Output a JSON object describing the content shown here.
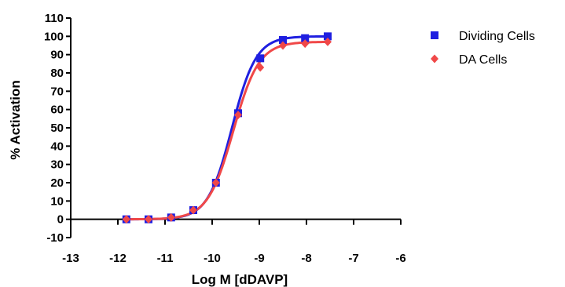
{
  "chart_data": {
    "type": "scatter",
    "title": "",
    "xlabel": "Log M [dDAVP]",
    "ylabel": "% Activation",
    "xlim": [
      -13,
      -6
    ],
    "ylim": [
      -10,
      110
    ],
    "x_ticks": [
      -13,
      -12,
      -11,
      -10,
      -9,
      -8,
      -7,
      -6
    ],
    "y_ticks": [
      -10,
      0,
      10,
      20,
      30,
      40,
      50,
      60,
      70,
      80,
      90,
      100,
      110
    ],
    "x_tick_labels": [
      "-13",
      "-12",
      "-11",
      "-10",
      "-9",
      "-8",
      "-7",
      "-6"
    ],
    "y_tick_labels": [
      "-10",
      "0",
      "10",
      "20",
      "30",
      "40",
      "50",
      "60",
      "70",
      "80",
      "90",
      "100",
      "110"
    ],
    "grid": false,
    "legend_position": "top-right",
    "series": [
      {
        "name": "Dividing Cells",
        "color": "#1f1fe0",
        "marker": "square",
        "x": [
          -11.82,
          -11.35,
          -10.87,
          -10.4,
          -9.92,
          -9.45,
          -8.98,
          -8.5,
          -8.03,
          -7.55
        ],
        "y": [
          0,
          0,
          1,
          5,
          20,
          58,
          88,
          98,
          99,
          100
        ],
        "fit": {
          "bottom": 0,
          "top": 100,
          "logEC50": -9.58,
          "hill": 1.7
        }
      },
      {
        "name": "DA Cells",
        "color": "#f04848",
        "marker": "diamond",
        "x": [
          -11.82,
          -11.35,
          -10.87,
          -10.4,
          -9.92,
          -9.45,
          -8.98,
          -8.5,
          -8.03,
          -7.55
        ],
        "y": [
          0,
          0,
          1,
          5,
          20,
          57,
          83,
          95,
          96,
          97
        ],
        "fit": {
          "bottom": 0,
          "top": 97,
          "logEC50": -9.55,
          "hill": 1.6
        }
      }
    ]
  }
}
